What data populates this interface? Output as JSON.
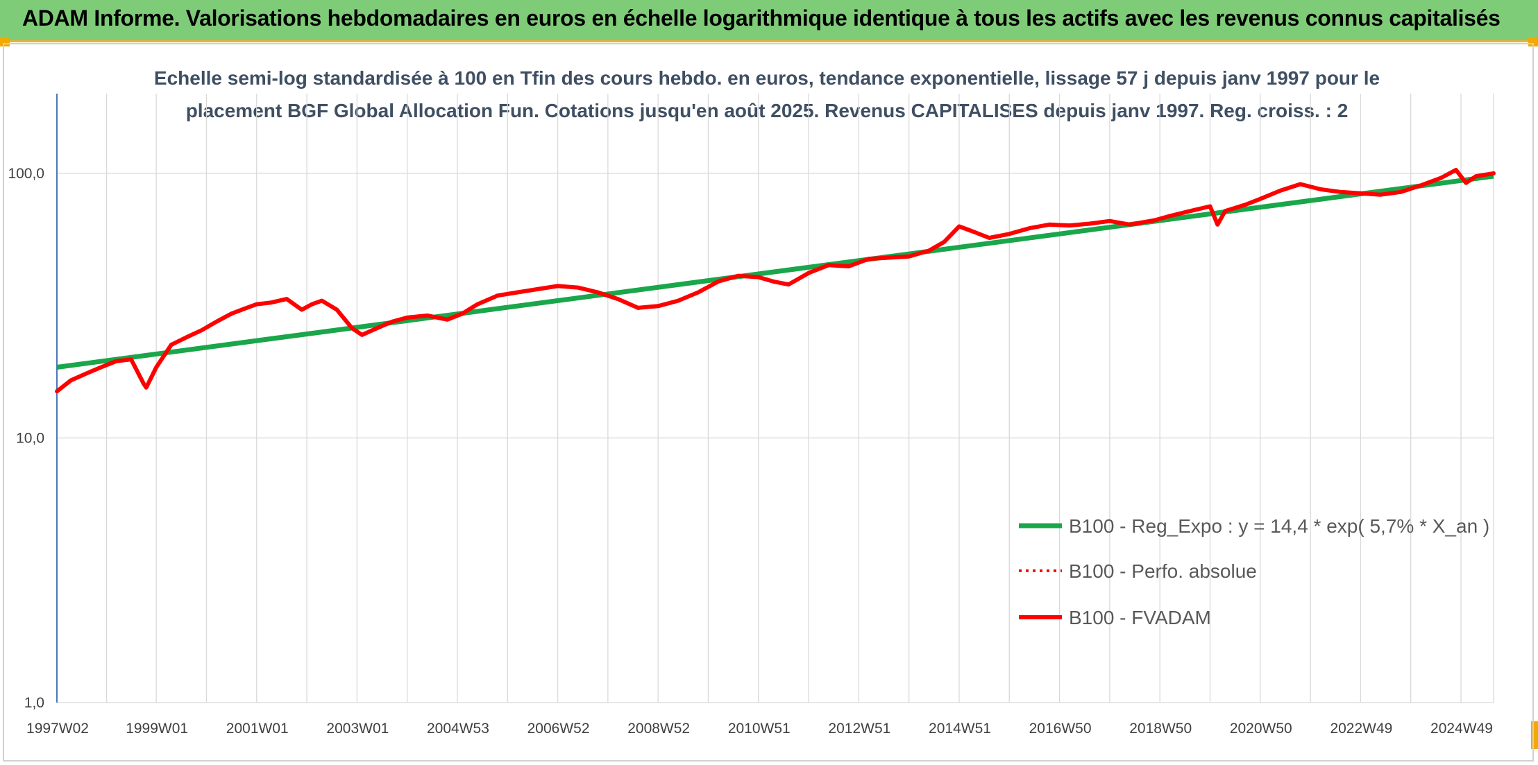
{
  "banner": {
    "title": "ADAM Informe. Valorisations hebdomadaires en euros en échelle logarithmique identique à tous les actifs avec les revenus connus capitalisés"
  },
  "colors": {
    "banner_bg": "#7fcc78",
    "banner_border": "#e3b43a",
    "trend": "#1aa64a",
    "series": "#ff0000",
    "grid": "#d9d9d9",
    "axis": "#4a78b8"
  },
  "chart_data": {
    "type": "line",
    "title_lines": [
      "Echelle semi-log standardisée à 100 en Tfin des cours hebdo. en euros, tendance exponentielle, lissage 57 j depuis janv 1997 pour le",
      "placement BGF Global Allocation Fun. Cotations jusqu'en août 2025. Revenus CAPITALISES depuis janv 1997. Reg. croiss. : 2"
    ],
    "y_scale": "log",
    "ylim": [
      1,
      200
    ],
    "y_ticks": [
      1,
      10,
      100
    ],
    "y_tick_labels": [
      "1,0",
      "10,0",
      "100,0"
    ],
    "xlim": [
      1997.02,
      2025.65
    ],
    "x_ticks": [
      1997.02,
      1999.0,
      2001.0,
      2003.0,
      2005.0,
      2007.0,
      2009.0,
      2011.0,
      2013.0,
      2015.0,
      2017.0,
      2019.0,
      2021.0,
      2023.0,
      2025.0
    ],
    "x_tick_labels": [
      "1997W02",
      "1999W01",
      "2001W01",
      "2003W01",
      "2004W53",
      "2006W52",
      "2008W52",
      "2010W51",
      "2012W51",
      "2014W51",
      "2016W50",
      "2018W50",
      "2020W50",
      "2022W49",
      "2024W49"
    ],
    "grid": "vertical and horizontal",
    "legend_position": "bottom-right",
    "series": [
      {
        "name": "B100 - Reg_Expo : y = 14,4 * exp( 5,7% *  X_an )",
        "style": "solid",
        "color": "#1aa64a",
        "x": [
          1997.02,
          2025.65
        ],
        "y": [
          18.5,
          97.5
        ]
      },
      {
        "name": "B100 - Perfo. absolue",
        "style": "dotted",
        "color": "#ff0000",
        "x": [],
        "y": []
      },
      {
        "name": "B100 - FVADAM",
        "style": "solid",
        "color": "#ff0000",
        "x": [
          1997.02,
          1997.3,
          1997.6,
          1997.9,
          1998.2,
          1998.5,
          1998.75,
          1998.8,
          1999.0,
          1999.3,
          1999.6,
          1999.9,
          2000.2,
          2000.5,
          2000.8,
          2001.0,
          2001.3,
          2001.6,
          2001.9,
          2002.1,
          2002.3,
          2002.6,
          2002.9,
          2003.1,
          2003.4,
          2003.7,
          2004.0,
          2004.4,
          2004.8,
          2005.1,
          2005.4,
          2005.8,
          2006.2,
          2006.6,
          2007.0,
          2007.4,
          2007.8,
          2008.2,
          2008.6,
          2009.0,
          2009.4,
          2009.8,
          2010.2,
          2010.6,
          2011.0,
          2011.3,
          2011.6,
          2012.0,
          2012.4,
          2012.8,
          2013.2,
          2013.6,
          2014.0,
          2014.4,
          2014.7,
          2015.0,
          2015.3,
          2015.6,
          2016.0,
          2016.4,
          2016.8,
          2017.2,
          2017.6,
          2018.0,
          2018.4,
          2018.9,
          2019.2,
          2019.6,
          2020.0,
          2020.15,
          2020.3,
          2020.7,
          2021.0,
          2021.4,
          2021.8,
          2022.2,
          2022.6,
          2023.0,
          2023.4,
          2023.8,
          2024.2,
          2024.6,
          2024.9,
          2025.1,
          2025.3,
          2025.65
        ],
        "y": [
          15.0,
          16.5,
          17.5,
          18.5,
          19.5,
          19.8,
          16.0,
          15.5,
          18.5,
          22.5,
          24.0,
          25.5,
          27.5,
          29.5,
          31.0,
          32.0,
          32.5,
          33.5,
          30.5,
          32.0,
          33.0,
          30.5,
          26.0,
          24.5,
          26.0,
          27.5,
          28.5,
          29.0,
          28.0,
          29.5,
          32.0,
          34.5,
          35.5,
          36.5,
          37.5,
          37.0,
          35.5,
          33.5,
          31.0,
          31.5,
          33.0,
          35.5,
          39.0,
          41.0,
          40.5,
          39.0,
          38.0,
          42.0,
          45.0,
          44.5,
          47.5,
          48.0,
          48.5,
          51.0,
          55.0,
          63.0,
          60.0,
          57.0,
          59.0,
          62.0,
          64.0,
          63.5,
          64.5,
          66.0,
          64.0,
          66.5,
          69.0,
          72.0,
          75.0,
          64.0,
          72.0,
          76.0,
          80.0,
          86.0,
          91.0,
          87.0,
          85.0,
          84.0,
          83.0,
          85.0,
          90.0,
          96.0,
          103.0,
          92.0,
          97.5,
          100.0
        ]
      }
    ]
  }
}
